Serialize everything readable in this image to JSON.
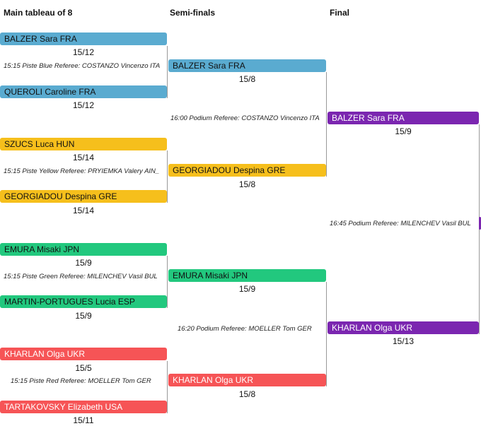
{
  "headers": {
    "main": "Main tableau of 8",
    "semi": "Semi-finals",
    "final": "Final"
  },
  "colors": {
    "blue": "#5aabd0",
    "yellow": "#f6bf1c",
    "green": "#22c87e",
    "red": "#f65456",
    "purple": "#7b26b0"
  },
  "r8": [
    {
      "name": "BALZER Sara FRA",
      "score": "15/12"
    },
    {
      "name": "QUEROLI Caroline FRA",
      "score": "15/12"
    },
    {
      "name": "SZUCS Luca HUN",
      "score": "15/14"
    },
    {
      "name": "GEORGIADOU Despina GRE",
      "score": "15/14"
    },
    {
      "name": "EMURA Misaki JPN",
      "score": "15/9"
    },
    {
      "name": "MARTIN-PORTUGUES Lucia ESP",
      "score": "15/9"
    },
    {
      "name": "KHARLAN Olga UKR",
      "score": "15/5"
    },
    {
      "name": "TARTAKOVSKY Elizabeth USA",
      "score": "15/11"
    }
  ],
  "r8_info": [
    "15:15 Piste Blue Referee: COSTANZO Vincenzo ITA",
    "15:15 Piste Yellow Referee: PRYIEMKA Valery AIN_",
    "15:15 Piste Green Referee: MILENCHEV Vasil BUL",
    "15:15 Piste Red Referee: MOELLER Tom GER"
  ],
  "semi": [
    {
      "name": "BALZER Sara FRA",
      "score": "15/8"
    },
    {
      "name": "GEORGIADOU Despina GRE",
      "score": "15/8"
    },
    {
      "name": "EMURA Misaki JPN",
      "score": "15/9"
    },
    {
      "name": "KHARLAN Olga UKR",
      "score": "15/8"
    }
  ],
  "semi_info": [
    "16:00 Podium Referee: COSTANZO Vincenzo ITA",
    "16:20 Podium Referee: MOELLER Tom GER"
  ],
  "final": [
    {
      "name": "BALZER Sara FRA",
      "score": "15/9"
    },
    {
      "name": "KHARLAN Olga UKR",
      "score": "15/13"
    }
  ],
  "final_info": "16:45 Podium Referee: MILENCHEV Vasil BUL"
}
